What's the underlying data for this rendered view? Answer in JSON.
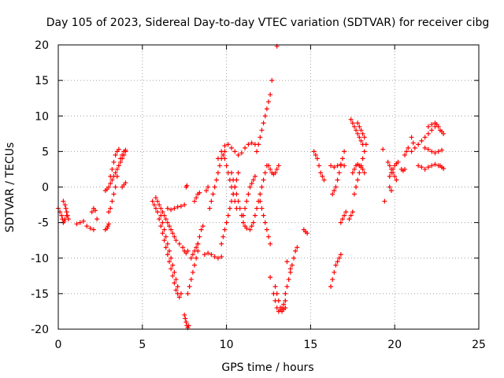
{
  "chart_data": {
    "type": "scatter",
    "title": "Day 105 of 2023, Sidereal Day-to-day VTEC variation (SDTVAR) for receiver cibg",
    "xlabel": "GPS time / hours",
    "ylabel": "SDTVAR / TECUs",
    "xlim": [
      0,
      25
    ],
    "ylim": [
      -20,
      20
    ],
    "x_ticks": [
      0,
      5,
      10,
      15,
      20,
      25
    ],
    "y_ticks": [
      -20,
      -15,
      -10,
      -5,
      0,
      5,
      10,
      15,
      20
    ],
    "x_tick_labels": [
      "0",
      "5",
      "10",
      "15",
      "20",
      "25"
    ],
    "y_tick_labels": [
      "-20",
      "-15",
      "-10",
      "-5",
      "0",
      "5",
      "10",
      "15",
      "20"
    ],
    "grid": true,
    "marker": "plus",
    "marker_color": "#ff0000",
    "series": [
      {
        "name": "t1",
        "x": [
          0.0,
          0.1,
          0.2,
          0.25,
          0.3,
          0.35,
          0.4,
          0.5
        ],
        "y": [
          -3.0,
          -3.5,
          -4.0,
          -4.5,
          -5.0,
          -4.8,
          -4.5,
          -4.0
        ]
      },
      {
        "name": "t2",
        "x": [
          0.3,
          0.4,
          0.45,
          0.5,
          0.55,
          0.6
        ],
        "y": [
          -2.0,
          -2.5,
          -3.0,
          -3.5,
          -4.0,
          -4.5
        ]
      },
      {
        "name": "t3",
        "x": [
          1.1,
          1.3,
          1.5,
          1.7,
          1.9,
          2.1,
          2.3
        ],
        "y": [
          -5.2,
          -5.0,
          -4.8,
          -5.5,
          -5.8,
          -6.0,
          -4.5
        ]
      },
      {
        "name": "t4",
        "x": [
          2.0,
          2.1,
          2.2
        ],
        "y": [
          -3.5,
          -3.0,
          -3.3
        ]
      },
      {
        "name": "t5",
        "x": [
          2.8,
          2.9,
          2.95,
          3.0
        ],
        "y": [
          -6.0,
          -5.8,
          -5.5,
          -5.2
        ]
      },
      {
        "name": "t6",
        "x": [
          2.8,
          2.9,
          3.0,
          3.1,
          3.2,
          3.3,
          3.4,
          3.5,
          3.6,
          3.7,
          3.8,
          3.9,
          4.0
        ],
        "y": [
          -0.5,
          -0.3,
          0.0,
          0.5,
          1.0,
          1.5,
          2.0,
          2.5,
          3.0,
          3.5,
          4.0,
          4.5,
          5.0
        ]
      },
      {
        "name": "t7",
        "x": [
          3.0,
          3.1,
          3.2,
          3.3,
          3.4,
          3.5,
          3.6,
          3.7,
          3.8,
          3.9,
          4.0
        ],
        "y": [
          -3.5,
          -3.0,
          -2.0,
          -1.0,
          0.0,
          1.5,
          3.0,
          4.0,
          4.5,
          5.0,
          5.2
        ]
      },
      {
        "name": "t8",
        "x": [
          3.1,
          3.2,
          3.3,
          3.4,
          3.5,
          3.6
        ],
        "y": [
          1.5,
          2.5,
          3.5,
          4.5,
          5.0,
          5.3
        ]
      },
      {
        "name": "t9",
        "x": [
          3.8,
          3.9,
          4.0
        ],
        "y": [
          0.0,
          0.3,
          0.6
        ]
      },
      {
        "name": "t10",
        "x": [
          5.6,
          5.7,
          5.8,
          5.9,
          6.0,
          6.1,
          6.2,
          6.3,
          6.4,
          6.5,
          6.6,
          6.7,
          6.8,
          6.9,
          7.0,
          7.1,
          7.2,
          7.3
        ],
        "y": [
          -2.0,
          -2.5,
          -3.0,
          -3.5,
          -4.5,
          -5.5,
          -6.5,
          -7.5,
          -8.5,
          -9.5,
          -10.5,
          -11.5,
          -12.5,
          -13.5,
          -14.5,
          -15.0,
          -15.5,
          -15.0
        ]
      },
      {
        "name": "t11",
        "x": [
          5.8,
          5.9,
          6.0,
          6.1,
          6.2,
          6.3,
          6.4,
          6.5,
          6.6,
          6.7,
          6.8,
          6.9,
          7.0,
          7.2,
          7.4,
          7.5,
          7.6,
          7.7
        ],
        "y": [
          -1.5,
          -2.0,
          -2.5,
          -3.0,
          -3.5,
          -4.0,
          -4.5,
          -5.0,
          -5.5,
          -6.0,
          -6.5,
          -7.0,
          -7.5,
          -8.0,
          -8.5,
          -9.0,
          -9.3,
          -9.0
        ]
      },
      {
        "name": "t12",
        "x": [
          6.1,
          6.2,
          6.3,
          6.4,
          6.5,
          6.6,
          6.7,
          6.8,
          6.9,
          7.0,
          7.1
        ],
        "y": [
          -4.0,
          -5.0,
          -6.0,
          -7.0,
          -8.0,
          -9.0,
          -10.0,
          -11.0,
          -12.0,
          -13.0,
          -14.0
        ]
      },
      {
        "name": "t13",
        "x": [
          6.5,
          6.7,
          6.9,
          7.1,
          7.3,
          7.5
        ],
        "y": [
          -3.0,
          -3.2,
          -3.0,
          -2.8,
          -2.7,
          -2.5
        ]
      },
      {
        "name": "t14",
        "x": [
          7.5,
          7.55,
          7.6,
          7.65,
          7.7,
          7.75
        ],
        "y": [
          -18.0,
          -18.5,
          -19.0,
          -19.5,
          -19.8,
          -19.5
        ]
      },
      {
        "name": "t15",
        "x": [
          7.6,
          7.65
        ],
        "y": [
          0.0,
          0.2
        ]
      },
      {
        "name": "t16",
        "x": [
          7.7,
          7.8,
          7.9,
          8.0,
          8.1,
          8.2,
          8.3
        ],
        "y": [
          -15.0,
          -14.0,
          -13.0,
          -12.0,
          -11.0,
          -10.0,
          -9.0
        ]
      },
      {
        "name": "t17",
        "x": [
          7.9,
          8.0,
          8.1,
          8.2,
          8.3
        ],
        "y": [
          -10.0,
          -9.5,
          -9.0,
          -8.5,
          -8.0
        ]
      },
      {
        "name": "t18",
        "x": [
          8.1,
          8.2,
          8.3,
          8.4
        ],
        "y": [
          -2.0,
          -1.5,
          -1.0,
          -0.8
        ]
      },
      {
        "name": "t19",
        "x": [
          8.3,
          8.4,
          8.5,
          8.6
        ],
        "y": [
          -8.0,
          -7.0,
          -6.0,
          -5.5
        ]
      },
      {
        "name": "t20",
        "x": [
          8.8,
          8.9
        ],
        "y": [
          -0.5,
          0.0
        ]
      },
      {
        "name": "t21",
        "x": [
          8.7,
          8.9,
          9.1,
          9.3,
          9.5,
          9.7
        ],
        "y": [
          -9.5,
          -9.3,
          -9.5,
          -9.8,
          -10.0,
          -9.8
        ]
      },
      {
        "name": "t22",
        "x": [
          9.0,
          9.1,
          9.2,
          9.3,
          9.4,
          9.5,
          9.6,
          9.7,
          9.8,
          9.9
        ],
        "y": [
          -3.0,
          -2.0,
          -1.0,
          0.0,
          1.0,
          2.0,
          3.0,
          4.0,
          4.5,
          5.0
        ]
      },
      {
        "name": "t23",
        "x": [
          9.5,
          9.7,
          9.9,
          10.1,
          10.3,
          10.5,
          10.7,
          10.9,
          11.1,
          11.3,
          11.5,
          11.7
        ],
        "y": [
          4.0,
          5.0,
          5.8,
          6.0,
          5.5,
          5.0,
          4.5,
          4.8,
          5.5,
          6.0,
          6.2,
          6.0
        ]
      },
      {
        "name": "t24",
        "x": [
          9.7,
          9.8,
          9.9,
          10.0,
          10.1,
          10.2,
          10.3,
          10.4,
          10.5,
          10.6,
          10.7
        ],
        "y": [
          -8.0,
          -7.0,
          -6.0,
          -5.0,
          -4.0,
          -3.0,
          -2.0,
          -1.0,
          0.0,
          1.0,
          2.0
        ]
      },
      {
        "name": "t25",
        "x": [
          9.9,
          10.0,
          10.1,
          10.2,
          10.3,
          10.4,
          10.5,
          10.6
        ],
        "y": [
          4.0,
          3.0,
          2.0,
          1.0,
          0.0,
          -1.0,
          -2.0,
          -3.0
        ]
      },
      {
        "name": "t26",
        "x": [
          10.3,
          10.4,
          10.5,
          10.6,
          10.7,
          10.8,
          10.9,
          11.0,
          11.1,
          11.2
        ],
        "y": [
          2.0,
          1.0,
          0.0,
          -1.0,
          -2.0,
          -3.0,
          -4.0,
          -5.0,
          -5.5,
          -5.8
        ]
      },
      {
        "name": "t27",
        "x": [
          11.0,
          11.1,
          11.2,
          11.3,
          11.4,
          11.5,
          11.6,
          11.7
        ],
        "y": [
          -4.0,
          -3.0,
          -2.0,
          -1.0,
          0.0,
          0.5,
          1.0,
          1.5
        ]
      },
      {
        "name": "t28",
        "x": [
          11.4,
          11.5,
          11.6,
          11.7,
          11.8,
          11.9,
          12.0,
          12.1,
          12.2,
          12.3,
          12.4
        ],
        "y": [
          -6.0,
          -5.5,
          -5.0,
          -4.0,
          -3.0,
          -2.0,
          -1.0,
          0.0,
          1.0,
          2.0,
          3.0
        ]
      },
      {
        "name": "t29",
        "x": [
          11.8,
          11.9,
          12.0,
          12.1,
          12.2,
          12.3,
          12.4,
          12.5,
          12.6,
          12.7
        ],
        "y": [
          5.0,
          6.0,
          7.0,
          8.0,
          9.0,
          10.0,
          11.0,
          12.0,
          13.0,
          15.0
        ]
      },
      {
        "name": "t30",
        "x": [
          12.0,
          12.1,
          12.2,
          12.3,
          12.4,
          12.5,
          12.6
        ],
        "y": [
          -2.0,
          -3.0,
          -4.0,
          -5.0,
          -6.0,
          -7.0,
          -8.0
        ]
      },
      {
        "name": "t31",
        "x": [
          12.5,
          12.6,
          12.7,
          12.8,
          12.9,
          13.0,
          13.1
        ],
        "y": [
          3.0,
          2.5,
          2.0,
          1.8,
          2.0,
          2.5,
          3.0
        ]
      },
      {
        "name": "t32",
        "x": [
          12.6
        ],
        "y": [
          -12.7
        ]
      },
      {
        "name": "t33",
        "x": [
          12.8,
          12.9,
          13.0,
          13.1,
          13.2,
          13.3,
          13.4,
          13.5
        ],
        "y": [
          -15.0,
          -16.0,
          -17.0,
          -17.5,
          -17.3,
          -17.0,
          -16.5,
          -16.0
        ]
      },
      {
        "name": "t34",
        "x": [
          12.9,
          13.0,
          13.1,
          13.2,
          13.3,
          13.4,
          13.5
        ],
        "y": [
          -14.0,
          -15.0,
          -16.0,
          -17.0,
          -17.5,
          -17.2,
          -17.0
        ]
      },
      {
        "name": "t35",
        "x": [
          13.0
        ],
        "y": [
          19.8
        ]
      },
      {
        "name": "t36",
        "x": [
          13.5,
          13.6,
          13.7,
          13.8,
          13.9,
          14.0,
          14.1,
          14.2
        ],
        "y": [
          -15.0,
          -14.0,
          -13.0,
          -12.0,
          -11.0,
          -10.0,
          -9.0,
          -8.5
        ]
      },
      {
        "name": "t37",
        "x": [
          13.6,
          13.8
        ],
        "y": [
          -10.5,
          -11.5
        ]
      },
      {
        "name": "t38",
        "x": [
          14.6,
          14.7,
          14.8
        ],
        "y": [
          -6.0,
          -6.3,
          -6.5
        ]
      },
      {
        "name": "t39",
        "x": [
          15.2,
          15.3,
          15.4,
          15.5,
          15.6,
          15.7,
          15.8
        ],
        "y": [
          5.0,
          4.5,
          4.0,
          3.0,
          2.0,
          1.5,
          1.0
        ]
      },
      {
        "name": "t40",
        "x": [
          16.2,
          16.3,
          16.4,
          16.5,
          16.6,
          16.7,
          16.8
        ],
        "y": [
          -14.0,
          -13.0,
          -12.0,
          -11.0,
          -10.5,
          -10.0,
          -9.5
        ]
      },
      {
        "name": "t41",
        "x": [
          16.2,
          16.4,
          16.6,
          16.8,
          17.0
        ],
        "y": [
          3.0,
          2.8,
          3.0,
          3.2,
          3.0
        ]
      },
      {
        "name": "t42",
        "x": [
          16.3,
          16.4,
          16.5,
          16.6,
          16.7,
          16.8,
          16.9,
          17.0
        ],
        "y": [
          -1.0,
          -0.5,
          0.0,
          1.0,
          2.0,
          3.0,
          4.0,
          5.0
        ]
      },
      {
        "name": "t43",
        "x": [
          16.8,
          16.9,
          17.0,
          17.1
        ],
        "y": [
          -5.0,
          -4.5,
          -4.0,
          -3.5
        ]
      },
      {
        "name": "t44",
        "x": [
          17.3,
          17.4,
          17.5
        ],
        "y": [
          -4.5,
          -4.0,
          -3.5
        ]
      },
      {
        "name": "t45",
        "x": [
          17.4,
          17.5,
          17.6,
          17.7,
          17.8,
          17.9,
          18.0,
          18.1
        ],
        "y": [
          9.5,
          9.0,
          8.5,
          8.0,
          7.5,
          7.0,
          6.5,
          6.0
        ]
      },
      {
        "name": "t46",
        "x": [
          17.5,
          17.6,
          17.7,
          17.8,
          17.9,
          18.0,
          18.1,
          18.2
        ],
        "y": [
          2.0,
          2.5,
          3.0,
          3.2,
          3.0,
          2.8,
          2.5,
          2.0
        ]
      },
      {
        "name": "t47",
        "x": [
          17.6,
          17.7,
          17.8,
          17.9,
          18.0,
          18.1,
          18.2,
          18.3
        ],
        "y": [
          -1.0,
          0.0,
          1.0,
          2.0,
          3.0,
          4.0,
          5.0,
          6.0
        ]
      },
      {
        "name": "t48",
        "x": [
          17.8,
          17.9,
          18.0,
          18.1,
          18.2
        ],
        "y": [
          9.0,
          8.5,
          8.0,
          7.5,
          7.0
        ]
      },
      {
        "name": "t49",
        "x": [
          19.3,
          19.4
        ],
        "y": [
          5.3,
          -2.0
        ]
      },
      {
        "name": "t50",
        "x": [
          19.6,
          19.7,
          19.8,
          19.9,
          20.0,
          20.1
        ],
        "y": [
          3.5,
          3.0,
          2.5,
          2.0,
          1.5,
          1.0
        ]
      },
      {
        "name": "t51",
        "x": [
          19.7,
          19.8,
          19.9,
          20.0,
          20.1,
          20.2
        ],
        "y": [
          1.5,
          2.0,
          2.5,
          3.0,
          3.3,
          3.5
        ]
      },
      {
        "name": "t52",
        "x": [
          19.7,
          19.8
        ],
        "y": [
          0.0,
          -0.5
        ]
      },
      {
        "name": "t53",
        "x": [
          20.4,
          20.5,
          20.6
        ],
        "y": [
          2.5,
          2.3,
          2.5
        ]
      },
      {
        "name": "t54",
        "x": [
          20.6,
          20.7,
          20.8
        ],
        "y": [
          4.5,
          5.0,
          5.5
        ]
      },
      {
        "name": "t55",
        "x": [
          21.0,
          21.1
        ],
        "y": [
          7.0,
          6.2
        ]
      },
      {
        "name": "t56",
        "x": [
          21.0,
          21.2,
          21.4,
          21.6,
          21.8,
          22.0,
          22.2,
          22.4
        ],
        "y": [
          5.0,
          5.5,
          6.0,
          6.5,
          7.0,
          7.5,
          8.0,
          8.5
        ]
      },
      {
        "name": "t57",
        "x": [
          21.4,
          21.6,
          21.8,
          22.0,
          22.2,
          22.4,
          22.6
        ],
        "y": [
          3.0,
          2.8,
          2.5,
          2.8,
          3.0,
          3.2,
          3.0
        ]
      },
      {
        "name": "t58",
        "x": [
          21.8,
          22.0,
          22.2,
          22.4,
          22.6,
          22.8
        ],
        "y": [
          5.5,
          5.3,
          5.0,
          4.8,
          5.0,
          5.2
        ]
      },
      {
        "name": "t59",
        "x": [
          22.0,
          22.2,
          22.4,
          22.5,
          22.6
        ],
        "y": [
          8.5,
          8.8,
          9.0,
          8.8,
          8.5
        ]
      },
      {
        "name": "t60",
        "x": [
          22.7,
          22.8,
          22.9
        ],
        "y": [
          8.0,
          7.8,
          7.5
        ]
      },
      {
        "name": "t61",
        "x": [
          22.7,
          22.8,
          22.9
        ],
        "y": [
          3.0,
          2.8,
          2.6
        ]
      }
    ]
  }
}
